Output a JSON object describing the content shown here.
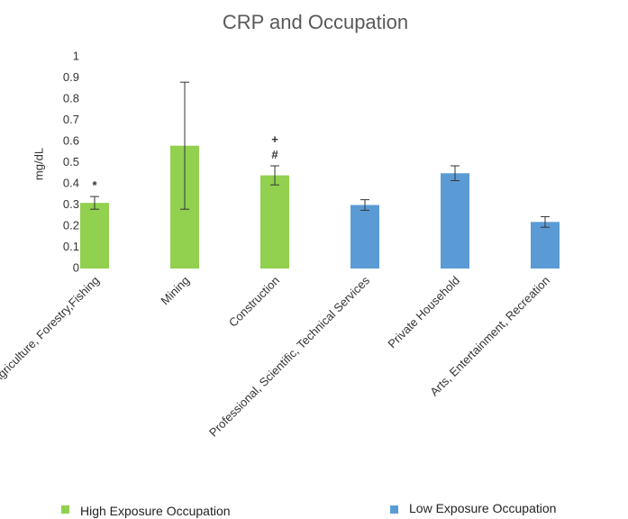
{
  "chart_data": {
    "type": "bar",
    "title": "CRP and Occupation",
    "ylabel": "mg/dL",
    "categories": [
      "Agriculture, Forestry,Fishing",
      "Mining",
      "Construction",
      "Professional, Scientific, Technical Services",
      "Private Household",
      "Arts, Entertainment, Recreation"
    ],
    "series": [
      {
        "name": "High Exposure Occupation",
        "color": "#92d050",
        "values": [
          0.31,
          0.58,
          0.44,
          null,
          null,
          null
        ],
        "errors": [
          0.03,
          0.3,
          0.045,
          null,
          null,
          null
        ]
      },
      {
        "name": "Low Exposure Occupation",
        "color": "#5b9bd5",
        "values": [
          null,
          null,
          null,
          0.3,
          0.45,
          0.22
        ],
        "errors": [
          null,
          null,
          null,
          0.025,
          0.035,
          0.025
        ]
      }
    ],
    "annotations": [
      {
        "text": "*",
        "x": 0
      },
      {
        "text": "#",
        "x": 2
      },
      {
        "text": "+",
        "x": 2
      }
    ],
    "ylim": [
      0,
      1
    ],
    "yticks": [
      0,
      0.1,
      0.2,
      0.3,
      0.4,
      0.5,
      0.6,
      0.7,
      0.8,
      0.9,
      1
    ],
    "grid": false
  }
}
